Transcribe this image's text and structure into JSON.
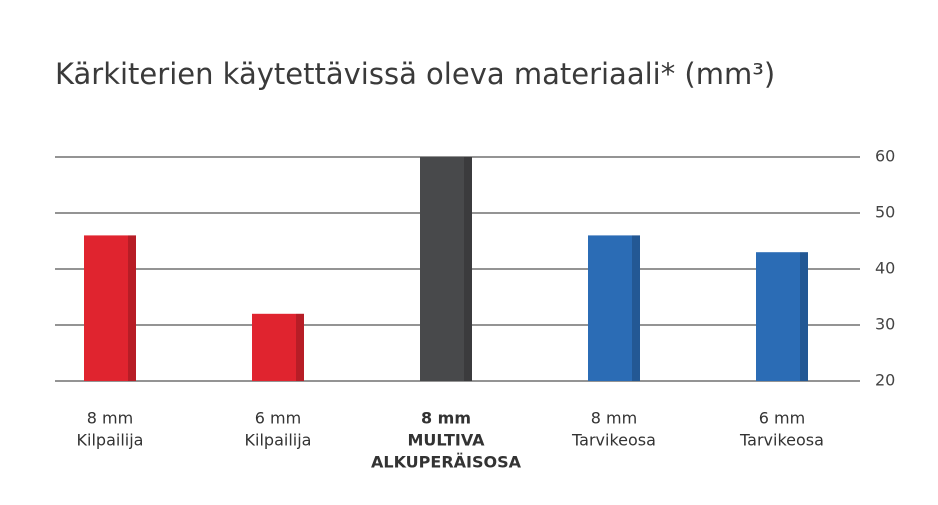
{
  "chart_data": {
    "type": "bar",
    "title": "Kärkiterien käytettävissä oleva materiaali* (mm³)",
    "categories": [
      [
        "8 mm",
        "Kilpailija"
      ],
      [
        "6 mm",
        "Kilpailija"
      ],
      [
        "8 mm",
        "MULTIVA",
        "ALKUPERÄISOSA"
      ],
      [
        "8 mm",
        "Tarvikeosa"
      ],
      [
        "6 mm",
        "Tarvikeosa"
      ]
    ],
    "values": [
      46,
      32,
      60,
      46,
      43
    ],
    "colors": [
      "#e0242f",
      "#e0242f",
      "#48494b",
      "#2b6cb5",
      "#2b6cb5"
    ],
    "bold_category": 2,
    "ylim": [
      20,
      60
    ],
    "yticks": [
      20,
      30,
      40,
      50,
      60
    ],
    "grid": true
  }
}
